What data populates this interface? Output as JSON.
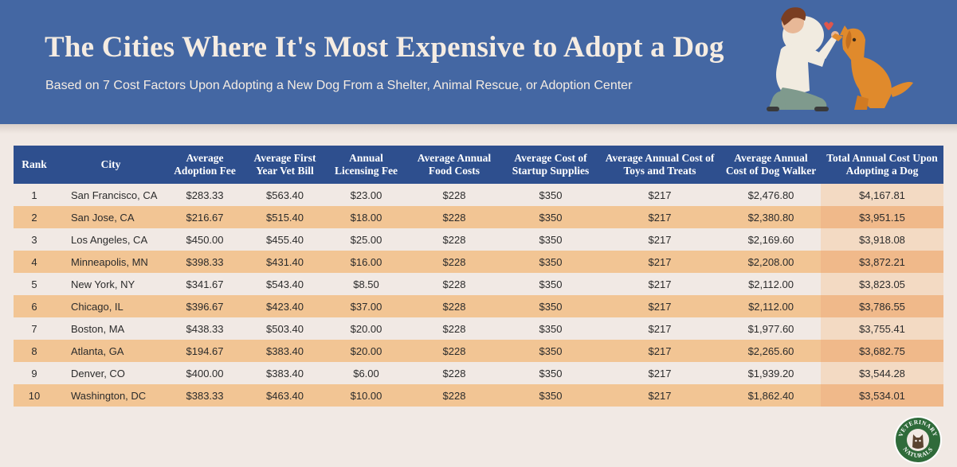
{
  "header": {
    "title": "The Cities Where It's Most Expensive to Adopt a Dog",
    "subtitle": "Based on 7 Cost Factors Upon Adopting a New Dog From a Shelter, Animal Rescue, or Adoption Center"
  },
  "illustration": {
    "icon": "person-high-fiving-dog-illustration"
  },
  "logo": {
    "text": "VETERINARY NATURALS",
    "icon": "dog-badge-logo"
  },
  "colors": {
    "banner": "#4467a3",
    "table_header": "#2e4f8e",
    "row_light": "#f1e9e4",
    "row_orange": "#f2c594"
  },
  "chart_data": {
    "type": "table",
    "columns": [
      "Rank",
      "City",
      "Average Adoption Fee",
      "Average First Year Vet Bill",
      "Annual Licensing Fee",
      "Average Annual Food Costs",
      "Average Cost of Startup Supplies",
      "Average Annual Cost of Toys and Treats",
      "Average Annual Cost of Dog Walker",
      "Total Annual Cost Upon Adopting a Dog"
    ],
    "rows": [
      [
        "1",
        "San Francisco, CA",
        "$283.33",
        "$563.40",
        "$23.00",
        "$228",
        "$350",
        "$217",
        "$2,476.80",
        "$4,167.81"
      ],
      [
        "2",
        "San Jose, CA",
        "$216.67",
        "$515.40",
        "$18.00",
        "$228",
        "$350",
        "$217",
        "$2,380.80",
        "$3,951.15"
      ],
      [
        "3",
        "Los Angeles, CA",
        "$450.00",
        "$455.40",
        "$25.00",
        "$228",
        "$350",
        "$217",
        "$2,169.60",
        "$3,918.08"
      ],
      [
        "4",
        "Minneapolis, MN",
        "$398.33",
        "$431.40",
        "$16.00",
        "$228",
        "$350",
        "$217",
        "$2,208.00",
        "$3,872.21"
      ],
      [
        "5",
        "New York, NY",
        "$341.67",
        "$543.40",
        "$8.50",
        "$228",
        "$350",
        "$217",
        "$2,112.00",
        "$3,823.05"
      ],
      [
        "6",
        "Chicago, IL",
        "$396.67",
        "$423.40",
        "$37.00",
        "$228",
        "$350",
        "$217",
        "$2,112.00",
        "$3,786.55"
      ],
      [
        "7",
        "Boston, MA",
        "$438.33",
        "$503.40",
        "$20.00",
        "$228",
        "$350",
        "$217",
        "$1,977.60",
        "$3,755.41"
      ],
      [
        "8",
        "Atlanta, GA",
        "$194.67",
        "$383.40",
        "$20.00",
        "$228",
        "$350",
        "$217",
        "$2,265.60",
        "$3,682.75"
      ],
      [
        "9",
        "Denver, CO",
        "$400.00",
        "$383.40",
        "$6.00",
        "$228",
        "$350",
        "$217",
        "$1,939.20",
        "$3,544.28"
      ],
      [
        "10",
        "Washington, DC",
        "$383.33",
        "$463.40",
        "$10.00",
        "$228",
        "$350",
        "$217",
        "$1,862.40",
        "$3,534.01"
      ]
    ]
  }
}
